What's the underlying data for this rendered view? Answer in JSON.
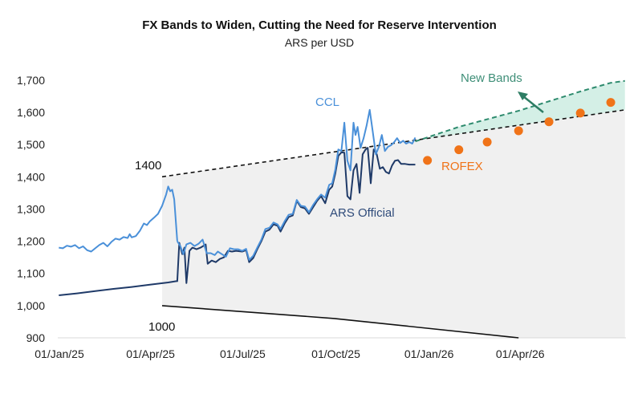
{
  "chart_data": {
    "type": "line",
    "title": "FX Bands to Widen, Cutting the Need for Reserve Intervention",
    "subtitle": "ARS per USD",
    "xlabel": "",
    "ylabel": "",
    "ylim": [
      900,
      1700
    ],
    "yticks": [
      "1,700",
      "1,600",
      "1,500",
      "1,400",
      "1,300",
      "1,200",
      "1,100",
      "1,000",
      "900"
    ],
    "ytick_values": [
      1700,
      1600,
      1500,
      1400,
      1300,
      1200,
      1100,
      1000,
      900
    ],
    "xlim": [
      "2025-01-01",
      "2026-07-15"
    ],
    "xticks": [
      "01/Jan/25",
      "01/Apr/25",
      "01/Jul/25",
      "01/Oct/25",
      "01/Jan/26",
      "01/Apr/26"
    ],
    "xtick_dates": [
      "2025-01-01",
      "2025-04-01",
      "2025-07-01",
      "2025-10-01",
      "2026-01-01",
      "2026-04-01"
    ],
    "grid": false,
    "colors": {
      "ccl": "#4a90d9",
      "official": "#1f3a68",
      "band": "#111111",
      "band_fill": "#f0f0f0",
      "new_band": "#2e8b6e",
      "new_band_fill": "#d4efe6",
      "rofex": "#f07318"
    },
    "series": [
      {
        "name": "CCL",
        "label": "CCL",
        "points": [
          [
            "2025-01-02",
            1180
          ],
          [
            "2025-01-06",
            1178
          ],
          [
            "2025-01-10",
            1186
          ],
          [
            "2025-01-14",
            1183
          ],
          [
            "2025-01-18",
            1188
          ],
          [
            "2025-01-22",
            1178
          ],
          [
            "2025-01-26",
            1184
          ],
          [
            "2025-01-30",
            1172
          ],
          [
            "2025-02-03",
            1168
          ],
          [
            "2025-02-07",
            1178
          ],
          [
            "2025-02-11",
            1188
          ],
          [
            "2025-02-15",
            1195
          ],
          [
            "2025-02-19",
            1184
          ],
          [
            "2025-02-23",
            1198
          ],
          [
            "2025-02-27",
            1208
          ],
          [
            "2025-03-03",
            1205
          ],
          [
            "2025-03-07",
            1213
          ],
          [
            "2025-03-11",
            1210
          ],
          [
            "2025-03-13",
            1222
          ],
          [
            "2025-03-15",
            1212
          ],
          [
            "2025-03-19",
            1216
          ],
          [
            "2025-03-23",
            1232
          ],
          [
            "2025-03-27",
            1255
          ],
          [
            "2025-03-30",
            1250
          ],
          [
            "2025-04-02",
            1262
          ],
          [
            "2025-04-06",
            1273
          ],
          [
            "2025-04-10",
            1285
          ],
          [
            "2025-04-14",
            1310
          ],
          [
            "2025-04-18",
            1345
          ],
          [
            "2025-04-20",
            1370
          ],
          [
            "2025-04-22",
            1355
          ],
          [
            "2025-04-24",
            1360
          ],
          [
            "2025-04-26",
            1330
          ],
          [
            "2025-04-29",
            1200
          ]
        ]
      },
      {
        "name": "CCL (post-band)",
        "label": "",
        "points": [
          [
            "2025-04-29",
            1200
          ],
          [
            "2025-05-02",
            1185
          ],
          [
            "2025-05-05",
            1160
          ],
          [
            "2025-05-08",
            1190
          ],
          [
            "2025-05-12",
            1195
          ],
          [
            "2025-05-16",
            1185
          ],
          [
            "2025-05-20",
            1192
          ],
          [
            "2025-05-24",
            1205
          ],
          [
            "2025-05-28",
            1163
          ],
          [
            "2025-06-01",
            1163
          ],
          [
            "2025-06-05",
            1157
          ],
          [
            "2025-06-08",
            1168
          ],
          [
            "2025-06-12",
            1160
          ],
          [
            "2025-06-16",
            1152
          ],
          [
            "2025-06-20",
            1178
          ],
          [
            "2025-06-24",
            1175
          ],
          [
            "2025-06-28",
            1175
          ],
          [
            "2025-07-02",
            1170
          ],
          [
            "2025-07-06",
            1176
          ],
          [
            "2025-07-09",
            1142
          ],
          [
            "2025-07-13",
            1155
          ],
          [
            "2025-07-17",
            1180
          ],
          [
            "2025-07-21",
            1205
          ],
          [
            "2025-07-25",
            1238
          ],
          [
            "2025-07-29",
            1242
          ],
          [
            "2025-08-02",
            1258
          ],
          [
            "2025-08-06",
            1252
          ],
          [
            "2025-08-09",
            1238
          ],
          [
            "2025-08-13",
            1262
          ],
          [
            "2025-08-17",
            1282
          ],
          [
            "2025-08-21",
            1285
          ],
          [
            "2025-08-25",
            1328
          ],
          [
            "2025-08-29",
            1310
          ],
          [
            "2025-09-02",
            1308
          ],
          [
            "2025-09-06",
            1290
          ],
          [
            "2025-09-10",
            1312
          ],
          [
            "2025-09-14",
            1330
          ],
          [
            "2025-09-18",
            1345
          ],
          [
            "2025-09-22",
            1335
          ],
          [
            "2025-09-26",
            1375
          ],
          [
            "2025-09-29",
            1380
          ],
          [
            "2025-10-02",
            1422
          ],
          [
            "2025-10-05",
            1485
          ],
          [
            "2025-10-08",
            1480
          ],
          [
            "2025-10-11",
            1568
          ],
          [
            "2025-10-14",
            1450
          ],
          [
            "2025-10-17",
            1420
          ],
          [
            "2025-10-20",
            1568
          ],
          [
            "2025-10-22",
            1530
          ],
          [
            "2025-10-24",
            1555
          ],
          [
            "2025-10-27",
            1490
          ],
          [
            "2025-10-30",
            1520
          ],
          [
            "2025-11-02",
            1560
          ],
          [
            "2025-11-05",
            1608
          ],
          [
            "2025-11-08",
            1540
          ],
          [
            "2025-11-11",
            1470
          ],
          [
            "2025-11-14",
            1493
          ],
          [
            "2025-11-17",
            1530
          ],
          [
            "2025-11-20",
            1480
          ],
          [
            "2025-11-23",
            1493
          ],
          [
            "2025-11-26",
            1498
          ],
          [
            "2025-11-29",
            1507
          ],
          [
            "2025-12-02",
            1520
          ],
          [
            "2025-12-05",
            1505
          ],
          [
            "2025-12-08",
            1512
          ],
          [
            "2025-12-11",
            1503
          ],
          [
            "2025-12-14",
            1508
          ],
          [
            "2025-12-17",
            1503
          ],
          [
            "2025-12-20",
            1522
          ]
        ]
      },
      {
        "name": "ARS Official",
        "label": "ARS Official",
        "points": [
          [
            "2025-01-02",
            1032
          ],
          [
            "2025-01-20",
            1038
          ],
          [
            "2025-02-07",
            1045
          ],
          [
            "2025-02-25",
            1052
          ],
          [
            "2025-03-15",
            1058
          ],
          [
            "2025-04-02",
            1065
          ],
          [
            "2025-04-20",
            1072
          ],
          [
            "2025-04-28",
            1076
          ],
          [
            "2025-04-29",
            1076
          ],
          [
            "2025-05-01",
            1195
          ],
          [
            "2025-05-04",
            1160
          ],
          [
            "2025-05-06",
            1180
          ],
          [
            "2025-05-08",
            1070
          ],
          [
            "2025-05-11",
            1170
          ],
          [
            "2025-05-14",
            1180
          ],
          [
            "2025-05-18",
            1175
          ],
          [
            "2025-05-22",
            1180
          ],
          [
            "2025-05-27",
            1190
          ],
          [
            "2025-05-29",
            1130
          ],
          [
            "2025-06-02",
            1140
          ],
          [
            "2025-06-06",
            1135
          ],
          [
            "2025-06-10",
            1145
          ],
          [
            "2025-06-14",
            1150
          ],
          [
            "2025-06-18",
            1170
          ],
          [
            "2025-06-22",
            1168
          ],
          [
            "2025-06-26",
            1170
          ],
          [
            "2025-07-02",
            1168
          ],
          [
            "2025-07-06",
            1172
          ],
          [
            "2025-07-09",
            1135
          ],
          [
            "2025-07-13",
            1148
          ],
          [
            "2025-07-17",
            1175
          ],
          [
            "2025-07-21",
            1200
          ],
          [
            "2025-07-25",
            1230
          ],
          [
            "2025-07-29",
            1236
          ],
          [
            "2025-08-02",
            1252
          ],
          [
            "2025-08-06",
            1248
          ],
          [
            "2025-08-09",
            1230
          ],
          [
            "2025-08-13",
            1255
          ],
          [
            "2025-08-17",
            1275
          ],
          [
            "2025-08-21",
            1280
          ],
          [
            "2025-08-25",
            1325
          ],
          [
            "2025-08-29",
            1306
          ],
          [
            "2025-09-02",
            1302
          ],
          [
            "2025-09-06",
            1285
          ],
          [
            "2025-09-10",
            1305
          ],
          [
            "2025-09-14",
            1325
          ],
          [
            "2025-09-18",
            1340
          ],
          [
            "2025-09-22",
            1318
          ],
          [
            "2025-09-26",
            1360
          ],
          [
            "2025-09-29",
            1370
          ],
          [
            "2025-10-02",
            1410
          ],
          [
            "2025-10-05",
            1465
          ],
          [
            "2025-10-08",
            1476
          ],
          [
            "2025-10-11",
            1475
          ],
          [
            "2025-10-14",
            1340
          ],
          [
            "2025-10-17",
            1330
          ],
          [
            "2025-10-20",
            1420
          ],
          [
            "2025-10-23",
            1440
          ],
          [
            "2025-10-26",
            1350
          ],
          [
            "2025-10-29",
            1470
          ],
          [
            "2025-11-01",
            1485
          ],
          [
            "2025-11-03",
            1490
          ],
          [
            "2025-11-06",
            1380
          ],
          [
            "2025-11-09",
            1485
          ],
          [
            "2025-11-12",
            1470
          ],
          [
            "2025-11-15",
            1425
          ],
          [
            "2025-11-18",
            1430
          ],
          [
            "2025-11-21",
            1415
          ],
          [
            "2025-11-24",
            1410
          ],
          [
            "2025-11-27",
            1435
          ],
          [
            "2025-11-30",
            1450
          ],
          [
            "2025-12-03",
            1452
          ],
          [
            "2025-12-06",
            1440
          ],
          [
            "2025-12-10",
            1440
          ],
          [
            "2025-12-14",
            1438
          ],
          [
            "2025-12-20",
            1438
          ]
        ]
      },
      {
        "name": "Upper band (current)",
        "points": [
          [
            "2025-04-14",
            1400
          ],
          [
            "2026-07-15",
            1608
          ]
        ]
      },
      {
        "name": "Lower band (current)",
        "points": [
          [
            "2025-04-14",
            1000
          ],
          [
            "2025-10-01",
            960
          ],
          [
            "2026-04-01",
            900
          ]
        ]
      },
      {
        "name": "New Bands (upper)",
        "points": [
          [
            "2025-12-20",
            1510
          ],
          [
            "2026-02-01",
            1555
          ],
          [
            "2026-04-01",
            1605
          ],
          [
            "2026-06-01",
            1665
          ],
          [
            "2026-07-01",
            1692
          ],
          [
            "2026-07-15",
            1698
          ]
        ]
      },
      {
        "name": "ROFEX",
        "label": "ROFEX",
        "points": [
          [
            "2026-01-01",
            1451
          ],
          [
            "2026-02-01",
            1484
          ],
          [
            "2026-03-01",
            1508
          ],
          [
            "2026-04-01",
            1543
          ],
          [
            "2026-05-01",
            1571
          ],
          [
            "2026-06-01",
            1598
          ],
          [
            "2026-07-01",
            1631
          ]
        ]
      }
    ],
    "annotations": {
      "band_upper_start": "1400",
      "band_lower_start": "1000",
      "ccl_label": "CCL",
      "official_label": "ARS Official",
      "new_bands_label": "New Bands",
      "rofex_label": "ROFEX"
    }
  }
}
